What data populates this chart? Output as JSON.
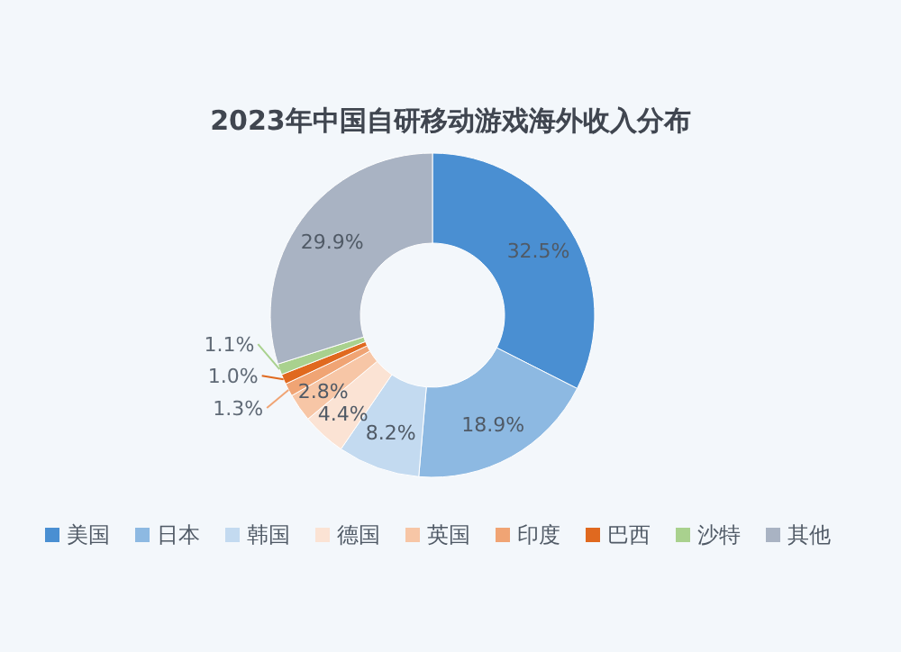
{
  "chart_data": {
    "type": "donut",
    "title": "2023年中国自研移动游戏海外收入分布",
    "categories": [
      "美国",
      "日本",
      "韩国",
      "德国",
      "英国",
      "印度",
      "巴西",
      "沙特",
      "其他"
    ],
    "values": [
      32.5,
      18.9,
      8.2,
      4.4,
      2.8,
      1.3,
      1.0,
      1.1,
      29.9
    ],
    "value_labels": [
      "32.5%",
      "18.9%",
      "8.2%",
      "4.4%",
      "2.8%",
      "1.3%",
      "1.0%",
      "1.1%",
      "29.9%"
    ],
    "colors": [
      "#4a8fd2",
      "#8db9e2",
      "#c3daf0",
      "#fbe3d4",
      "#f7c6a6",
      "#f0a474",
      "#e0691f",
      "#a9d18e",
      "#a9b3c3"
    ],
    "legend": "bottom"
  }
}
